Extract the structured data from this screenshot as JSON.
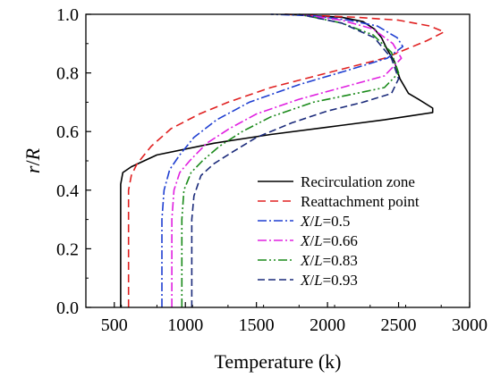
{
  "chart_data": {
    "type": "line",
    "xlabel": "Temperature (k)",
    "ylabel": {
      "italic_r": "r",
      "slash": "/",
      "italic_R": "R"
    },
    "xlim": [
      300,
      3000
    ],
    "ylim": [
      0.0,
      1.0
    ],
    "x_ticks": [
      "500",
      "1000",
      "1500",
      "2000",
      "2500",
      "3000"
    ],
    "y_ticks": [
      "0.0",
      "0.2",
      "0.4",
      "0.6",
      "0.8",
      "1.0"
    ],
    "x_tick_values": [
      500,
      1000,
      1500,
      2000,
      2500,
      3000
    ],
    "y_tick_values": [
      0.0,
      0.2,
      0.4,
      0.6,
      0.8,
      1.0
    ],
    "grid": false,
    "legend_position": "right-center",
    "series": [
      {
        "name": "Recirculation zone",
        "legend": {
          "pre": "Recirculation zone",
          "var": "",
          "post": ""
        },
        "color": "#000000",
        "dash": "solid",
        "points": [
          [
            545,
            0.0
          ],
          [
            545,
            0.42
          ],
          [
            560,
            0.46
          ],
          [
            620,
            0.48
          ],
          [
            800,
            0.52
          ],
          [
            1200,
            0.56
          ],
          [
            1600,
            0.59
          ],
          [
            2000,
            0.615
          ],
          [
            2400,
            0.64
          ],
          [
            2740,
            0.665
          ],
          [
            2740,
            0.68
          ],
          [
            2640,
            0.71
          ],
          [
            2570,
            0.73
          ],
          [
            2510,
            0.78
          ],
          [
            2470,
            0.84
          ],
          [
            2420,
            0.88
          ],
          [
            2380,
            0.92
          ],
          [
            2330,
            0.95
          ],
          [
            2250,
            0.975
          ],
          [
            2100,
            0.99
          ],
          [
            1700,
            1.0
          ]
        ]
      },
      {
        "name": "Reattachment point",
        "legend": {
          "pre": "Reattachment point",
          "var": "",
          "post": ""
        },
        "color": "#e02020",
        "dash": "9,5",
        "points": [
          [
            600,
            0.0
          ],
          [
            600,
            0.4
          ],
          [
            620,
            0.45
          ],
          [
            660,
            0.49
          ],
          [
            760,
            0.55
          ],
          [
            900,
            0.61
          ],
          [
            1100,
            0.66
          ],
          [
            1300,
            0.7
          ],
          [
            1600,
            0.75
          ],
          [
            2000,
            0.8
          ],
          [
            2400,
            0.85
          ],
          [
            2700,
            0.91
          ],
          [
            2820,
            0.94
          ],
          [
            2720,
            0.96
          ],
          [
            2500,
            0.98
          ],
          [
            2200,
            0.99
          ],
          [
            1700,
            1.0
          ]
        ]
      },
      {
        "name": "X/L=0.5",
        "legend": {
          "pre": "",
          "var": "X",
          "post": "/L=0.5"
        },
        "color": "#1f3fd1",
        "dash": "10,3,2,3",
        "points": [
          [
            835,
            0.0
          ],
          [
            835,
            0.3
          ],
          [
            850,
            0.4
          ],
          [
            890,
            0.47
          ],
          [
            960,
            0.52
          ],
          [
            1060,
            0.58
          ],
          [
            1220,
            0.64
          ],
          [
            1450,
            0.7
          ],
          [
            1800,
            0.76
          ],
          [
            2150,
            0.81
          ],
          [
            2420,
            0.85
          ],
          [
            2530,
            0.89
          ],
          [
            2490,
            0.92
          ],
          [
            2350,
            0.96
          ],
          [
            2150,
            0.98
          ],
          [
            1900,
            0.995
          ],
          [
            1600,
            1.0
          ]
        ]
      },
      {
        "name": "X/L=0.66",
        "legend": {
          "pre": "",
          "var": "X",
          "post": "/L=0.66"
        },
        "color": "#e020e0",
        "dash": "10,3,2,3",
        "points": [
          [
            905,
            0.0
          ],
          [
            905,
            0.3
          ],
          [
            920,
            0.4
          ],
          [
            960,
            0.46
          ],
          [
            1030,
            0.5
          ],
          [
            1150,
            0.56
          ],
          [
            1310,
            0.61
          ],
          [
            1500,
            0.66
          ],
          [
            1800,
            0.71
          ],
          [
            2100,
            0.75
          ],
          [
            2400,
            0.79
          ],
          [
            2520,
            0.85
          ],
          [
            2460,
            0.9
          ],
          [
            2320,
            0.95
          ],
          [
            2100,
            0.98
          ],
          [
            1800,
            1.0
          ]
        ]
      },
      {
        "name": "X/L=0.83",
        "legend": {
          "pre": "",
          "var": "X",
          "post": "/L=0.83"
        },
        "color": "#1a8a1a",
        "dash": "10,3,2,3,2,3",
        "points": [
          [
            975,
            0.0
          ],
          [
            975,
            0.3
          ],
          [
            990,
            0.4
          ],
          [
            1040,
            0.46
          ],
          [
            1120,
            0.5
          ],
          [
            1240,
            0.55
          ],
          [
            1400,
            0.6
          ],
          [
            1600,
            0.65
          ],
          [
            1900,
            0.7
          ],
          [
            2200,
            0.73
          ],
          [
            2400,
            0.75
          ],
          [
            2500,
            0.8
          ],
          [
            2450,
            0.87
          ],
          [
            2320,
            0.93
          ],
          [
            2100,
            0.97
          ],
          [
            1800,
            1.0
          ]
        ]
      },
      {
        "name": "X/L=0.93",
        "legend": {
          "pre": "",
          "var": "X",
          "post": "/L=0.93"
        },
        "color": "#1a2a7a",
        "dash": "8,4",
        "points": [
          [
            1045,
            0.0
          ],
          [
            1045,
            0.3
          ],
          [
            1060,
            0.38
          ],
          [
            1110,
            0.45
          ],
          [
            1200,
            0.49
          ],
          [
            1330,
            0.53
          ],
          [
            1500,
            0.58
          ],
          [
            1750,
            0.63
          ],
          [
            2000,
            0.67
          ],
          [
            2250,
            0.7
          ],
          [
            2450,
            0.73
          ],
          [
            2500,
            0.78
          ],
          [
            2450,
            0.85
          ],
          [
            2330,
            0.92
          ],
          [
            2100,
            0.97
          ],
          [
            1800,
            1.0
          ]
        ]
      }
    ]
  }
}
